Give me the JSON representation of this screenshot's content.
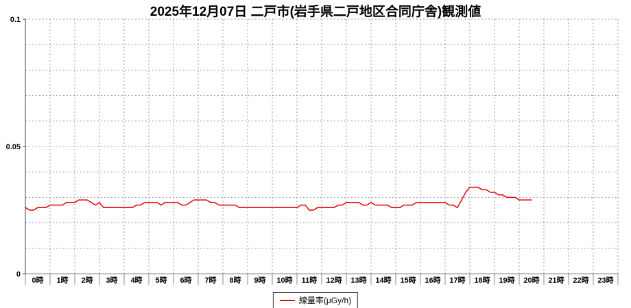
{
  "title": "2025年12月07日 二戸市(岩手県二戸地区合同庁舎)観測値",
  "legend": {
    "label": "線量率(μGy/h)",
    "line_color": "#e60000"
  },
  "axes": {
    "y_tick_labels": [
      {
        "value": 0,
        "label": "0"
      },
      {
        "value": 0.05,
        "label": "0.05"
      },
      {
        "value": 0.1,
        "label": "0.1"
      }
    ],
    "x_tick_labels": [
      "0時",
      "1時",
      "2時",
      "3時",
      "4時",
      "5時",
      "6時",
      "7時",
      "8時",
      "9時",
      "10時",
      "11時",
      "12時",
      "13時",
      "14時",
      "15時",
      "16時",
      "17時",
      "18時",
      "19時",
      "20時",
      "21時",
      "22時",
      "23時"
    ]
  },
  "chart_data": {
    "type": "line",
    "title": "2025年12月07日 二戸市(岩手県二戸地区合同庁舎)観測値",
    "xlabel": "",
    "ylabel": "",
    "ylim": [
      0,
      0.1
    ],
    "y_grid_step": 0.01,
    "y_major_ticks": [
      0,
      0.05,
      0.1
    ],
    "x_hours_total": 24,
    "grid": true,
    "legend_position": "bottom-center",
    "series": [
      {
        "name": "線量率(μGy/h)",
        "color": "#e60000",
        "unit": "μGy/h",
        "start_time": "00:00",
        "end_time": "20:30",
        "interval_minutes": 10,
        "values": [
          0.026,
          0.025,
          0.025,
          0.026,
          0.026,
          0.026,
          0.027,
          0.027,
          0.027,
          0.027,
          0.028,
          0.028,
          0.028,
          0.029,
          0.029,
          0.029,
          0.028,
          0.027,
          0.028,
          0.026,
          0.026,
          0.026,
          0.026,
          0.026,
          0.026,
          0.026,
          0.026,
          0.027,
          0.027,
          0.028,
          0.028,
          0.028,
          0.028,
          0.027,
          0.028,
          0.028,
          0.028,
          0.028,
          0.027,
          0.027,
          0.028,
          0.029,
          0.029,
          0.029,
          0.029,
          0.028,
          0.028,
          0.027,
          0.027,
          0.027,
          0.027,
          0.027,
          0.026,
          0.026,
          0.026,
          0.026,
          0.026,
          0.026,
          0.026,
          0.026,
          0.026,
          0.026,
          0.026,
          0.026,
          0.026,
          0.026,
          0.026,
          0.027,
          0.027,
          0.025,
          0.025,
          0.026,
          0.026,
          0.026,
          0.026,
          0.026,
          0.027,
          0.027,
          0.028,
          0.028,
          0.028,
          0.028,
          0.027,
          0.027,
          0.028,
          0.027,
          0.027,
          0.027,
          0.027,
          0.026,
          0.026,
          0.026,
          0.027,
          0.027,
          0.027,
          0.028,
          0.028,
          0.028,
          0.028,
          0.028,
          0.028,
          0.028,
          0.028,
          0.027,
          0.027,
          0.026,
          0.029,
          0.032,
          0.034,
          0.034,
          0.034,
          0.033,
          0.033,
          0.032,
          0.032,
          0.031,
          0.031,
          0.03,
          0.03,
          0.03,
          0.029,
          0.029,
          0.029,
          0.029
        ]
      }
    ]
  }
}
